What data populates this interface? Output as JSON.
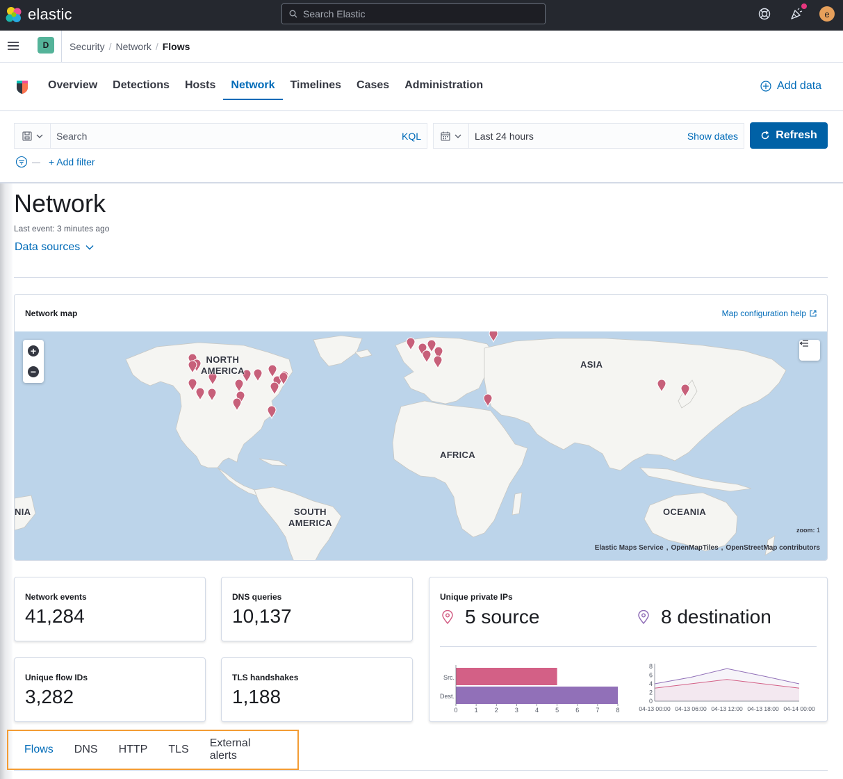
{
  "header": {
    "brand": "elastic",
    "search_placeholder": "Search Elastic",
    "user_initial": "e"
  },
  "breadcrumb_bar": {
    "space_initial": "D",
    "crumbs": [
      "Security",
      "Network",
      "Flows"
    ]
  },
  "app_nav": {
    "tabs": [
      "Overview",
      "Detections",
      "Hosts",
      "Network",
      "Timelines",
      "Cases",
      "Administration"
    ],
    "active_tab": "Network",
    "add_data": "Add data"
  },
  "query_bar": {
    "search_placeholder": "Search",
    "language": "KQL",
    "date_range": "Last 24 hours",
    "show_dates": "Show dates",
    "refresh": "Refresh",
    "add_filter": "+ Add filter"
  },
  "page": {
    "title": "Network",
    "last_event": "Last event: 3 minutes ago",
    "data_sources": "Data sources"
  },
  "map": {
    "title": "Network map",
    "help_link": "Map configuration help",
    "labels": {
      "north_america_1": "NORTH",
      "north_america_2": "AMERICA",
      "asia": "ASIA",
      "africa": "AFRICA",
      "south_america_1": "SOUTH",
      "south_america_2": "AMERICA",
      "oceania": "OCEANIA",
      "wrap": "NIA"
    },
    "zoom_label": "zoom:",
    "zoom_value": "1",
    "attribution": [
      "Elastic Maps Service",
      "OpenMapTiles",
      "OpenStreetMap contributors"
    ],
    "pin_color": "#c7607a"
  },
  "kpis": {
    "network_events": {
      "label": "Network events",
      "value": "41,284"
    },
    "dns_queries": {
      "label": "DNS queries",
      "value": "10,137"
    },
    "unique_flow_ids": {
      "label": "Unique flow IDs",
      "value": "3,282"
    },
    "tls_handshakes": {
      "label": "TLS handshakes",
      "value": "1,188"
    },
    "unique_private_ips": {
      "label": "Unique private IPs",
      "source": "5 source",
      "destination": "8 destination"
    }
  },
  "chart_data": [
    {
      "type": "bar",
      "orientation": "horizontal",
      "categories": [
        "Src.",
        "Dest."
      ],
      "values": [
        5,
        8
      ],
      "colors": [
        "#d36086",
        "#9170b8"
      ],
      "xlim": [
        0,
        8
      ],
      "xticks": [
        "0",
        "1",
        "2",
        "3",
        "4",
        "5",
        "6",
        "7",
        "8"
      ]
    },
    {
      "type": "area",
      "x": [
        "04-13 00:00",
        "04-13 06:00",
        "04-13 12:00",
        "04-13 18:00",
        "04-14 00:00"
      ],
      "series": [
        {
          "values": [
            4,
            5.5,
            7.5,
            5.8,
            4
          ],
          "color": "#9170b8"
        },
        {
          "values": [
            3,
            4,
            5,
            4,
            3
          ],
          "color": "#d36086"
        }
      ],
      "ylim": [
        0,
        8
      ],
      "yticks": [
        "0",
        "2",
        "4",
        "6",
        "8"
      ]
    }
  ],
  "bottom_tabs": {
    "tabs": [
      "Flows",
      "DNS",
      "HTTP",
      "TLS",
      "External alerts"
    ],
    "active": "Flows"
  }
}
